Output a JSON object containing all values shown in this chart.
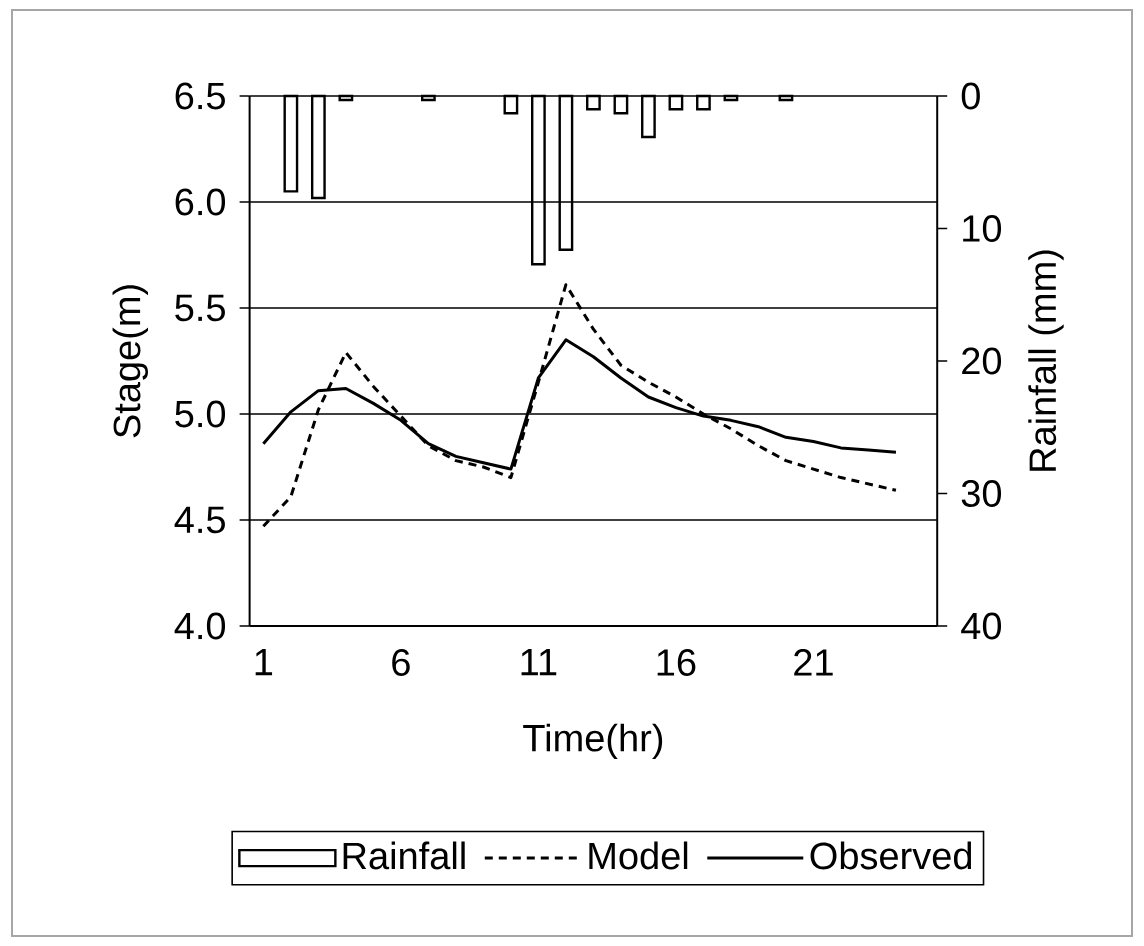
{
  "chart_data": {
    "type": "line",
    "xlabel": "Time(hr)",
    "ylabel": "Stage(m)",
    "y2label": "Rainfall (mm)",
    "categories": [
      "1",
      null,
      null,
      null,
      null,
      "6",
      null,
      null,
      null,
      null,
      "11",
      null,
      null,
      null,
      null,
      "16",
      null,
      null,
      null,
      null,
      "21",
      null,
      null,
      null,
      null
    ],
    "series": [
      {
        "name": "Rainfall",
        "type": "bar",
        "axis": "y2",
        "color": "#ffffff",
        "values": [
          null,
          7.2,
          7.7,
          0.3,
          null,
          null,
          0.3,
          null,
          null,
          1.3,
          12.7,
          11.6,
          1.0,
          1.3,
          3.1,
          1.0,
          1.0,
          0.3,
          null,
          0.3,
          null,
          null,
          null,
          null,
          null
        ]
      },
      {
        "name": "Model",
        "line_style": "dashed",
        "color": "#000000",
        "values": [
          4.47,
          4.61,
          5.02,
          5.29,
          5.13,
          4.99,
          4.85,
          4.78,
          4.75,
          4.7,
          5.15,
          5.61,
          5.4,
          5.23,
          5.15,
          5.08,
          5.0,
          4.93,
          4.85,
          4.78,
          4.74,
          4.7,
          4.67,
          4.64,
          null
        ]
      },
      {
        "name": "Observed",
        "line_style": "solid",
        "color": "#000000",
        "values": [
          4.86,
          5.01,
          5.11,
          5.12,
          5.05,
          4.97,
          4.86,
          4.8,
          4.77,
          4.74,
          5.17,
          5.35,
          5.27,
          5.17,
          5.08,
          5.03,
          4.99,
          4.97,
          4.94,
          4.89,
          4.87,
          4.84,
          4.83,
          4.82,
          null
        ]
      }
    ],
    "ylim": [
      4.0,
      6.5
    ],
    "yticks": [
      {
        "value": 4.0,
        "label": "4.0"
      },
      {
        "value": 4.5,
        "label": "4.5"
      },
      {
        "value": 5.0,
        "label": "5.0"
      },
      {
        "value": 5.5,
        "label": "5.5"
      },
      {
        "value": 6.0,
        "label": "6.0"
      },
      {
        "value": 6.5,
        "label": "6.5"
      }
    ],
    "y2lim": [
      40,
      0
    ],
    "y2ticks": [
      0,
      10,
      20,
      30,
      40
    ],
    "grid": "y",
    "legend": "bottom"
  }
}
